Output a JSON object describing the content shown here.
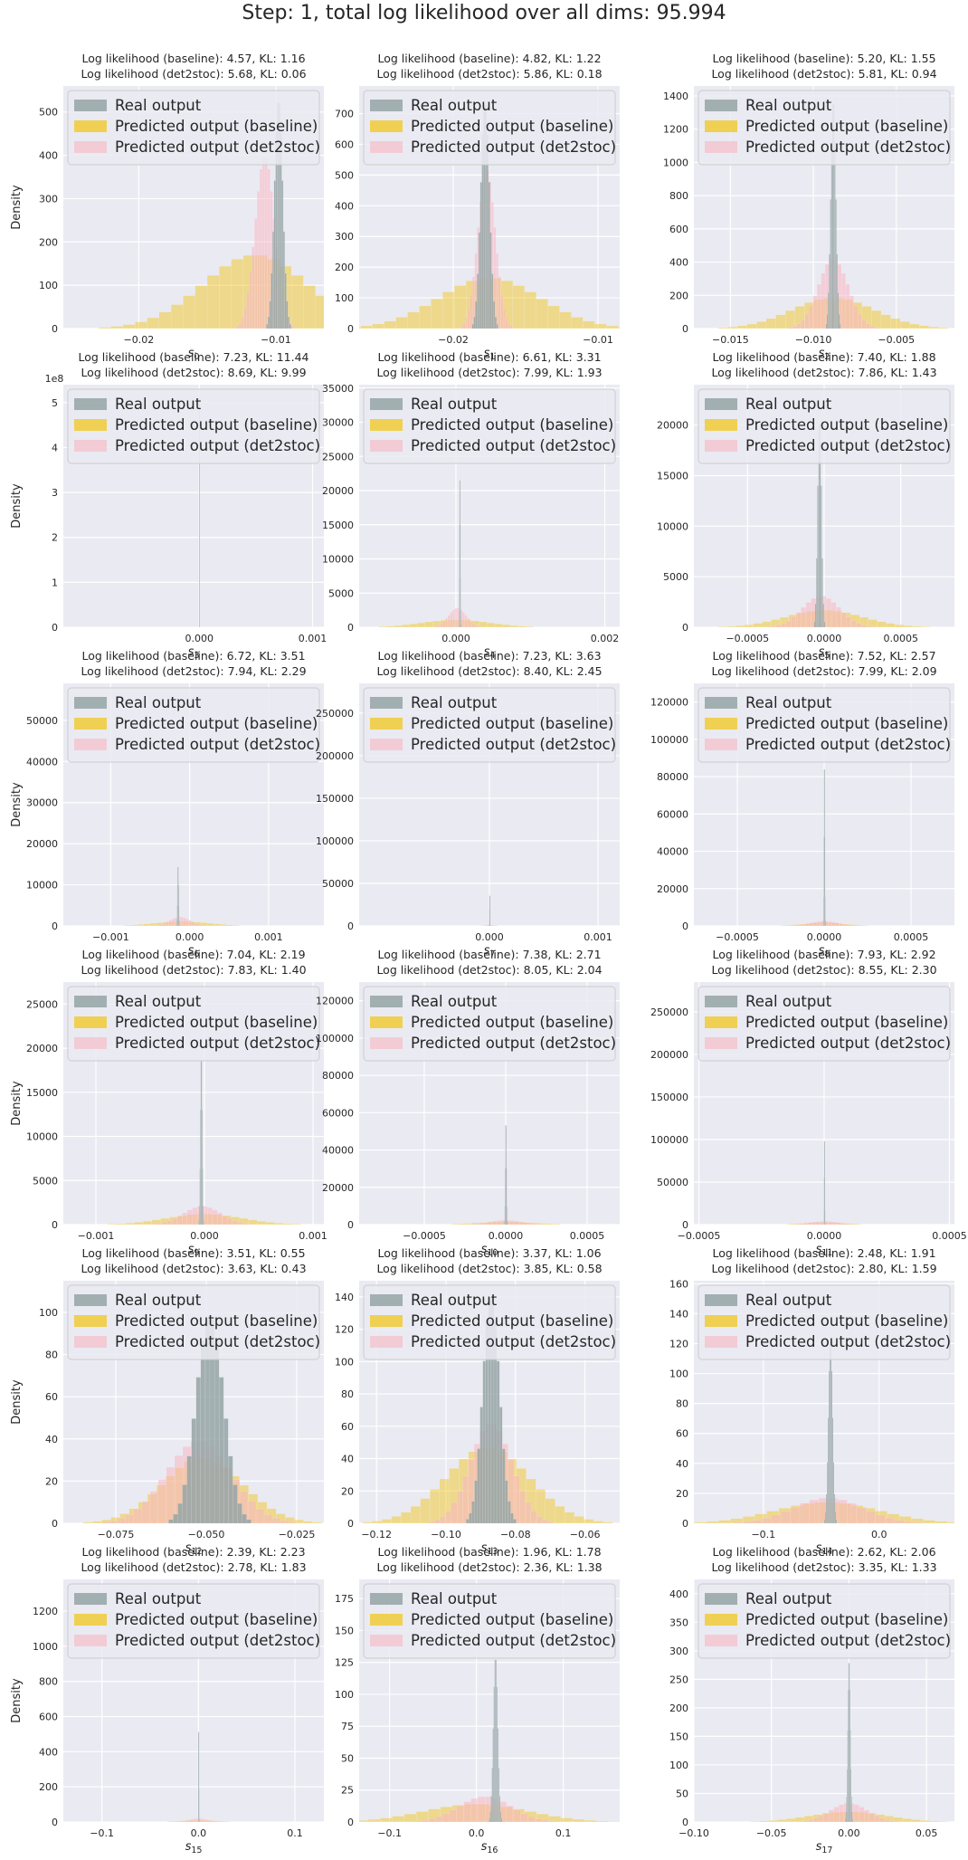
{
  "suptitle": "Step: 1, total log likelihood over all dims: 95.994",
  "ylabel": "Density",
  "legend": [
    "Real output",
    "Predicted output (baseline)",
    "Predicted output (det2stoc)"
  ],
  "colors": {
    "real": "#95a5a6",
    "baseline": "#f1c40f",
    "det2stoc": "#f7b6c2",
    "background": "#eaeaf2",
    "grid": "#ffffff"
  },
  "chart_data": [
    {
      "type": "bar",
      "xlabel_base": "s",
      "xlabel_sub": "0",
      "title1": "Log likelihood (baseline): 4.57, KL: 1.16",
      "title2": "Log likelihood (det2stoc): 5.68, KL: 0.06",
      "xlim": [
        -0.0255,
        -0.0065
      ],
      "ylim": [
        0,
        560
      ],
      "xticks": [
        -0.02,
        -0.01
      ],
      "xtick_labels": [
        "−0.02",
        "−0.01"
      ],
      "yticks": [
        0,
        100,
        200,
        300,
        400,
        500
      ],
      "ytick_labels": [
        "0",
        "100",
        "200",
        "300",
        "400",
        "500"
      ],
      "yexp": "",
      "real": {
        "mean": -0.0098,
        "sd": 0.0003,
        "peak": 530,
        "bins": 16
      },
      "baseline": {
        "mean": -0.0115,
        "sd": 0.0038,
        "peak": 170,
        "bins": 26
      },
      "det2stoc": {
        "mean": -0.0108,
        "sd": 0.0007,
        "peak": 400,
        "bins": 22
      }
    },
    {
      "type": "bar",
      "xlabel_base": "s",
      "xlabel_sub": "1",
      "title1": "Log likelihood (baseline): 4.82, KL: 1.22",
      "title2": "Log likelihood (det2stoc): 5.86, KL: 0.18",
      "xlim": [
        -0.0265,
        -0.0085
      ],
      "ylim": [
        0,
        790
      ],
      "xticks": [
        -0.02,
        -0.01
      ],
      "xtick_labels": [
        "−0.02",
        "−0.01"
      ],
      "yticks": [
        0,
        100,
        200,
        300,
        400,
        500,
        600,
        700
      ],
      "ytick_labels": [
        "0",
        "100",
        "200",
        "300",
        "400",
        "500",
        "600",
        "700"
      ],
      "yexp": "",
      "real": {
        "mean": -0.0178,
        "sd": 0.0003,
        "peak": 740,
        "bins": 16
      },
      "baseline": {
        "mean": -0.0175,
        "sd": 0.0035,
        "peak": 165,
        "bins": 26
      },
      "det2stoc": {
        "mean": -0.0177,
        "sd": 0.0006,
        "peak": 520,
        "bins": 22
      }
    },
    {
      "type": "bar",
      "xlabel_base": "s",
      "xlabel_sub": "2",
      "title1": "Log likelihood (baseline): 5.20, KL: 1.55",
      "title2": "Log likelihood (det2stoc): 5.81, KL: 0.94",
      "xlim": [
        -0.0172,
        -0.0015
      ],
      "ylim": [
        0,
        1460
      ],
      "xticks": [
        -0.015,
        -0.01,
        -0.005
      ],
      "xtick_labels": [
        "−0.015",
        "−0.010",
        "−0.005"
      ],
      "yticks": [
        0,
        200,
        400,
        600,
        800,
        1000,
        1200,
        1400
      ],
      "ytick_labels": [
        "0",
        "200",
        "400",
        "600",
        "800",
        "1000",
        "1200",
        "1400"
      ],
      "yexp": "",
      "real": {
        "mean": -0.0088,
        "sd": 0.00015,
        "peak": 1380,
        "bins": 14
      },
      "baseline": {
        "mean": -0.0088,
        "sd": 0.0025,
        "peak": 185,
        "bins": 26
      },
      "det2stoc": {
        "mean": -0.0088,
        "sd": 0.0009,
        "peak": 420,
        "bins": 22
      }
    },
    {
      "type": "bar",
      "xlabel_base": "s",
      "xlabel_sub": "3",
      "title1": "Log likelihood (baseline): 7.23, KL: 11.44",
      "title2": "Log likelihood (det2stoc): 8.69, KL: 9.99",
      "xlim": [
        -0.0012,
        0.0011
      ],
      "ylim": [
        0,
        5.4
      ],
      "xticks": [
        0.0,
        0.001
      ],
      "xtick_labels": [
        "0.000",
        "0.001"
      ],
      "yticks": [
        0,
        1,
        2,
        3,
        4,
        5
      ],
      "ytick_labels": [
        "0",
        "1",
        "2",
        "3",
        "4",
        "5"
      ],
      "yexp": "1e8",
      "real": {
        "mean": 0.0,
        "sd": 1e-07,
        "peak": 5.1,
        "bins": 1
      },
      "baseline": {
        "mean": 0.0,
        "sd": 0.0003,
        "peak": 0.0,
        "bins": 1
      },
      "det2stoc": {
        "mean": 0.0,
        "sd": 0.0002,
        "peak": 0.0,
        "bins": 1
      }
    },
    {
      "type": "bar",
      "xlabel_base": "s",
      "xlabel_sub": "4",
      "title1": "Log likelihood (baseline): 6.61, KL: 3.31",
      "title2": "Log likelihood (det2stoc): 7.99, KL: 1.93",
      "xlim": [
        -0.0013,
        0.0022
      ],
      "ylim": [
        0,
        35500
      ],
      "xticks": [
        0.0,
        0.002
      ],
      "xtick_labels": [
        "0.000",
        "0.002"
      ],
      "yticks": [
        0,
        5000,
        10000,
        15000,
        20000,
        25000,
        30000,
        35000
      ],
      "ytick_labels": [
        "0",
        "5000",
        "10000",
        "15000",
        "20000",
        "25000",
        "30000",
        "35000"
      ],
      "yexp": "",
      "real": {
        "mean": 5e-05,
        "sd": 4e-06,
        "peak": 22500,
        "bins": 10
      },
      "baseline": {
        "mean": 0.0,
        "sd": 0.00045,
        "peak": 1100,
        "bins": 26
      },
      "det2stoc": {
        "mean": 2e-05,
        "sd": 0.00012,
        "peak": 2800,
        "bins": 22
      }
    },
    {
      "type": "bar",
      "xlabel_base": "s",
      "xlabel_sub": "5",
      "title1": "Log likelihood (baseline): 7.40, KL: 1.88",
      "title2": "Log likelihood (det2stoc): 7.86, KL: 1.43",
      "xlim": [
        -0.00085,
        0.00085
      ],
      "ylim": [
        0,
        24000
      ],
      "xticks": [
        -0.0005,
        0.0,
        0.0005
      ],
      "xtick_labels": [
        "−0.0005",
        "0.0000",
        "0.0005"
      ],
      "yticks": [
        0,
        5000,
        10000,
        15000,
        20000
      ],
      "ytick_labels": [
        "0",
        "5000",
        "10000",
        "15000",
        "20000"
      ],
      "yexp": "",
      "real": {
        "mean": -3e-05,
        "sd": 1.2e-05,
        "peak": 21000,
        "bins": 10
      },
      "baseline": {
        "mean": 0.0,
        "sd": 0.00025,
        "peak": 1700,
        "bins": 26
      },
      "det2stoc": {
        "mean": -2e-05,
        "sd": 0.00012,
        "peak": 3100,
        "bins": 22
      }
    },
    {
      "type": "bar",
      "xlabel_base": "s",
      "xlabel_sub": "6",
      "title1": "Log likelihood (baseline): 6.72, KL: 3.51",
      "title2": "Log likelihood (det2stoc): 7.94, KL: 2.29",
      "xlim": [
        -0.0016,
        0.0017
      ],
      "ylim": [
        0,
        59000
      ],
      "xticks": [
        -0.001,
        0.0,
        0.001
      ],
      "xtick_labels": [
        "−0.001",
        "0.000",
        "0.001"
      ],
      "yticks": [
        0,
        10000,
        20000,
        30000,
        40000,
        50000
      ],
      "ytick_labels": [
        "0",
        "10000",
        "20000",
        "30000",
        "40000",
        "50000"
      ],
      "yexp": "",
      "real": {
        "mean": -0.00015,
        "sd": 6e-06,
        "peak": 15000,
        "bins": 10
      },
      "baseline": {
        "mean": -0.0001,
        "sd": 0.00035,
        "peak": 1100,
        "bins": 26
      },
      "det2stoc": {
        "mean": -0.00012,
        "sd": 0.00013,
        "peak": 2200,
        "bins": 22
      }
    },
    {
      "type": "bar",
      "xlabel_base": "s",
      "xlabel_sub": "7",
      "title1": "Log likelihood (baseline): 7.23, KL: 3.63",
      "title2": "Log likelihood (det2stoc): 8.40, KL: 2.45",
      "xlim": [
        -0.0012,
        0.0012
      ],
      "ylim": [
        0,
        285000
      ],
      "xticks": [
        0.0,
        0.001
      ],
      "xtick_labels": [
        "0.000",
        "0.001"
      ],
      "yticks": [
        0,
        50000,
        100000,
        150000,
        200000,
        250000
      ],
      "ytick_labels": [
        "0",
        "50000",
        "100000",
        "150000",
        "200000",
        "250000"
      ],
      "yexp": "",
      "real": {
        "mean": 0.0,
        "sd": 8e-07,
        "peak": 38000,
        "bins": 8
      },
      "baseline": {
        "mean": 0.0,
        "sd": 8e-05,
        "peak": 900,
        "bins": 26
      },
      "det2stoc": {
        "mean": 0.0,
        "sd": 3e-05,
        "peak": 1800,
        "bins": 22
      }
    },
    {
      "type": "bar",
      "xlabel_base": "s",
      "xlabel_sub": "8",
      "title1": "Log likelihood (baseline): 7.52, KL: 2.57",
      "title2": "Log likelihood (det2stoc): 7.99, KL: 2.09",
      "xlim": [
        -0.00075,
        0.00075
      ],
      "ylim": [
        0,
        130000
      ],
      "xticks": [
        -0.0005,
        0.0,
        0.0005
      ],
      "xtick_labels": [
        "−0.0005",
        "0.0000",
        "0.0005"
      ],
      "yticks": [
        0,
        20000,
        40000,
        60000,
        80000,
        100000,
        120000
      ],
      "ytick_labels": [
        "0",
        "20000",
        "40000",
        "60000",
        "80000",
        "100000",
        "120000"
      ],
      "yexp": "",
      "real": {
        "mean": 0.0,
        "sd": 2e-06,
        "peak": 90000,
        "bins": 8
      },
      "baseline": {
        "mean": 0.0,
        "sd": 0.00012,
        "peak": 1800,
        "bins": 26
      },
      "det2stoc": {
        "mean": 0.0,
        "sd": 8e-05,
        "peak": 2600,
        "bins": 22
      }
    },
    {
      "type": "bar",
      "xlabel_base": "s",
      "xlabel_sub": "9",
      "title1": "Log likelihood (baseline): 7.04, KL: 2.19",
      "title2": "Log likelihood (det2stoc): 7.83, KL: 1.40",
      "xlim": [
        -0.0013,
        0.0011
      ],
      "ylim": [
        0,
        27500
      ],
      "xticks": [
        -0.001,
        0.0,
        0.001
      ],
      "xtick_labels": [
        "−0.001",
        "0.000",
        "0.001"
      ],
      "yticks": [
        0,
        5000,
        10000,
        15000,
        20000,
        25000
      ],
      "ytick_labels": [
        "0",
        "5000",
        "10000",
        "15000",
        "20000",
        "25000"
      ],
      "yexp": "",
      "real": {
        "mean": -3e-05,
        "sd": 8e-06,
        "peak": 19500,
        "bins": 10
      },
      "baseline": {
        "mean": 0.0,
        "sd": 0.00035,
        "peak": 1200,
        "bins": 26
      },
      "det2stoc": {
        "mean": -2e-05,
        "sd": 0.00017,
        "peak": 2100,
        "bins": 22
      }
    },
    {
      "type": "bar",
      "xlabel_base": "s",
      "xlabel_sub": "10",
      "title1": "Log likelihood (baseline): 7.38, KL: 2.71",
      "title2": "Log likelihood (det2stoc): 8.05, KL: 2.04",
      "xlim": [
        -0.0009,
        0.0007
      ],
      "ylim": [
        0,
        130000
      ],
      "xticks": [
        -0.0005,
        0.0,
        0.0005
      ],
      "xtick_labels": [
        "−0.0005",
        "0.0000",
        "0.0005"
      ],
      "yticks": [
        0,
        20000,
        40000,
        60000,
        80000,
        100000,
        120000
      ],
      "ytick_labels": [
        "0",
        "20000",
        "40000",
        "60000",
        "80000",
        "100000",
        "120000"
      ],
      "yexp": "",
      "real": {
        "mean": 0.0,
        "sd": 3e-06,
        "peak": 57000,
        "bins": 8
      },
      "baseline": {
        "mean": 0.0,
        "sd": 0.00018,
        "peak": 1500,
        "bins": 26
      },
      "det2stoc": {
        "mean": 0.0,
        "sd": 0.0001,
        "peak": 2400,
        "bins": 22
      }
    },
    {
      "type": "bar",
      "xlabel_base": "s",
      "xlabel_sub": "11",
      "title1": "Log likelihood (baseline): 7.93, KL: 2.92",
      "title2": "Log likelihood (det2stoc): 8.55, KL: 2.30",
      "xlim": [
        -0.00052,
        0.00052
      ],
      "ylim": [
        0,
        285000
      ],
      "xticks": [
        -0.0005,
        0.0,
        0.0005
      ],
      "xtick_labels": [
        "−0.0005",
        "0.0000",
        "0.0005"
      ],
      "yticks": [
        0,
        50000,
        100000,
        150000,
        200000,
        250000
      ],
      "ytick_labels": [
        "0",
        "50000",
        "100000",
        "150000",
        "200000",
        "250000"
      ],
      "yexp": "",
      "real": {
        "mean": 0.0,
        "sd": 8e-07,
        "peak": 105000,
        "bins": 8
      },
      "baseline": {
        "mean": 0.0,
        "sd": 9e-05,
        "peak": 2500,
        "bins": 26
      },
      "det2stoc": {
        "mean": 0.0,
        "sd": 6e-05,
        "peak": 4000,
        "bins": 22
      }
    },
    {
      "type": "bar",
      "xlabel_base": "s",
      "xlabel_sub": "12",
      "title1": "Log likelihood (baseline): 3.51, KL: 0.55",
      "title2": "Log likelihood (det2stoc): 3.63, KL: 0.43",
      "xlim": [
        -0.0895,
        -0.0175
      ],
      "ylim": [
        0,
        115
      ],
      "xticks": [
        -0.075,
        -0.05,
        -0.025
      ],
      "xtick_labels": [
        "−0.075",
        "−0.050",
        "−0.025"
      ],
      "yticks": [
        0,
        20,
        40,
        60,
        80,
        100
      ],
      "ytick_labels": [
        "0",
        "20",
        "40",
        "60",
        "80",
        "100"
      ],
      "yexp": "",
      "real": {
        "mean": -0.049,
        "sd": 0.0038,
        "peak": 98,
        "bins": 18
      },
      "baseline": {
        "mean": -0.051,
        "sd": 0.011,
        "peak": 31,
        "bins": 26
      },
      "det2stoc": {
        "mean": -0.052,
        "sd": 0.009,
        "peak": 39,
        "bins": 24
      }
    },
    {
      "type": "bar",
      "xlabel_base": "s",
      "xlabel_sub": "13",
      "title1": "Log likelihood (baseline): 3.37, KL: 1.06",
      "title2": "Log likelihood (det2stoc): 3.85, KL: 0.58",
      "xlim": [
        -0.125,
        -0.05
      ],
      "ylim": [
        0,
        150
      ],
      "xticks": [
        -0.12,
        -0.1,
        -0.08,
        -0.06
      ],
      "xtick_labels": [
        "−0.12",
        "−0.10",
        "−0.08",
        "−0.06"
      ],
      "yticks": [
        0,
        20,
        40,
        60,
        80,
        100,
        120,
        140
      ],
      "ytick_labels": [
        "0",
        "20",
        "40",
        "60",
        "80",
        "100",
        "120",
        "140"
      ],
      "yexp": "",
      "real": {
        "mean": -0.087,
        "sd": 0.0024,
        "peak": 142,
        "bins": 18
      },
      "baseline": {
        "mean": -0.088,
        "sd": 0.012,
        "peak": 47,
        "bins": 26
      },
      "det2stoc": {
        "mean": -0.087,
        "sd": 0.006,
        "peak": 62,
        "bins": 22
      }
    },
    {
      "type": "bar",
      "xlabel_base": "s",
      "xlabel_sub": "14",
      "title1": "Log likelihood (baseline): 2.48, KL: 1.91",
      "title2": "Log likelihood (det2stoc): 2.80, KL: 1.59",
      "xlim": [
        -0.16,
        0.065
      ],
      "ylim": [
        0,
        162
      ],
      "xticks": [
        -0.1,
        0.0
      ],
      "xtick_labels": [
        "−0.1",
        "0.0"
      ],
      "yticks": [
        0,
        20,
        40,
        60,
        80,
        100,
        120,
        140,
        160
      ],
      "ytick_labels": [
        "0",
        "20",
        "40",
        "60",
        "80",
        "100",
        "120",
        "140",
        "160"
      ],
      "yexp": "",
      "real": {
        "mean": -0.042,
        "sd": 0.0018,
        "peak": 125,
        "bins": 14
      },
      "baseline": {
        "mean": -0.045,
        "sd": 0.045,
        "peak": 14,
        "bins": 26
      },
      "det2stoc": {
        "mean": -0.044,
        "sd": 0.03,
        "peak": 17,
        "bins": 22
      }
    },
    {
      "type": "bar",
      "xlabel_base": "s",
      "xlabel_sub": "15",
      "title1": "Log likelihood (baseline): 2.39, KL: 2.23",
      "title2": "Log likelihood (det2stoc): 2.78, KL: 1.83",
      "xlim": [
        -0.14,
        0.13
      ],
      "ylim": [
        0,
        1380
      ],
      "xticks": [
        -0.1,
        0.0,
        0.1
      ],
      "xtick_labels": [
        "−0.1",
        "0.0",
        "0.1"
      ],
      "yticks": [
        0,
        200,
        400,
        600,
        800,
        1000,
        1200
      ],
      "ytick_labels": [
        "0",
        "200",
        "400",
        "600",
        "800",
        "1000",
        "1200"
      ],
      "yexp": "",
      "real": {
        "mean": 0.0,
        "sd": 0.00015,
        "peak": 580,
        "bins": 6
      },
      "baseline": {
        "mean": 0.0,
        "sd": 0.02,
        "peak": 10,
        "bins": 26
      },
      "det2stoc": {
        "mean": 0.0,
        "sd": 0.01,
        "peak": 20,
        "bins": 22
      }
    },
    {
      "type": "bar",
      "xlabel_base": "s",
      "xlabel_sub": "16",
      "title1": "Log likelihood (baseline): 1.96, KL: 1.78",
      "title2": "Log likelihood (det2stoc): 2.36, KL: 1.38",
      "xlim": [
        -0.135,
        0.165
      ],
      "ylim": [
        0,
        190
      ],
      "xticks": [
        -0.1,
        0.0,
        0.1
      ],
      "xtick_labels": [
        "−0.1",
        "0.0",
        "0.1"
      ],
      "yticks": [
        0,
        25,
        50,
        75,
        100,
        125,
        150,
        175
      ],
      "ytick_labels": [
        "0",
        "25",
        "50",
        "75",
        "100",
        "125",
        "150",
        "175"
      ],
      "yexp": "",
      "real": {
        "mean": 0.022,
        "sd": 0.0025,
        "peak": 130,
        "bins": 14
      },
      "baseline": {
        "mean": 0.0,
        "sd": 0.06,
        "peak": 14,
        "bins": 26
      },
      "det2stoc": {
        "mean": 0.01,
        "sd": 0.03,
        "peak": 20,
        "bins": 22
      }
    },
    {
      "type": "bar",
      "xlabel_base": "s",
      "xlabel_sub": "17",
      "title1": "Log likelihood (baseline): 2.62, KL: 2.06",
      "title2": "Log likelihood (det2stoc): 3.35, KL: 1.33",
      "xlim": [
        -0.1,
        0.068
      ],
      "ylim": [
        0,
        425
      ],
      "xticks": [
        -0.1,
        -0.05,
        0.0,
        0.05
      ],
      "xtick_labels": [
        "−0.10",
        "−0.05",
        "0.00",
        "0.05"
      ],
      "yticks": [
        0,
        50,
        100,
        150,
        200,
        250,
        300,
        350,
        400
      ],
      "ytick_labels": [
        "0",
        "50",
        "100",
        "150",
        "200",
        "250",
        "300",
        "350",
        "400"
      ],
      "yexp": "",
      "real": {
        "mean": 0.0,
        "sd": 0.0008,
        "peak": 285,
        "bins": 14
      },
      "baseline": {
        "mean": 0.0,
        "sd": 0.025,
        "peak": 18,
        "bins": 26
      },
      "det2stoc": {
        "mean": 0.0,
        "sd": 0.012,
        "peak": 33,
        "bins": 22
      }
    }
  ]
}
